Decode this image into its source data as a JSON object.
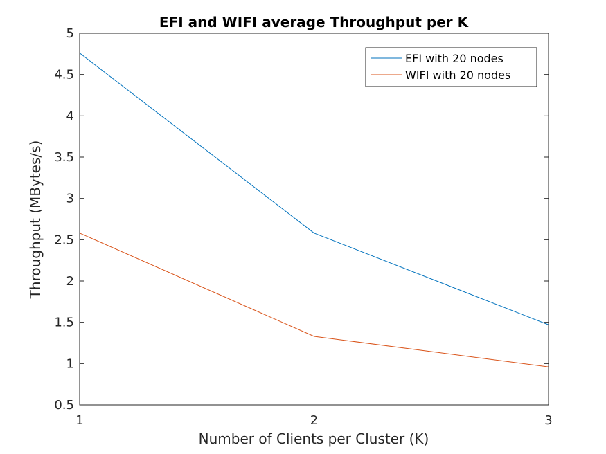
{
  "chart_data": {
    "type": "line",
    "title": "EFI and WIFI average Throughput per K",
    "xlabel": "Number of Clients per Cluster (K)",
    "ylabel": "Throughput (MBytes/s)",
    "x": [
      1,
      2,
      3
    ],
    "xlim": [
      1,
      3
    ],
    "ylim": [
      0.5,
      5
    ],
    "xticks": [
      "1",
      "2",
      "3"
    ],
    "yticks": [
      "0.5",
      "1",
      "1.5",
      "2",
      "2.5",
      "3",
      "3.5",
      "4",
      "4.5",
      "5"
    ],
    "grid": false,
    "legend_position": "top-right",
    "series": [
      {
        "name": "EFI with 20 nodes",
        "values": [
          4.76,
          2.58,
          1.47
        ],
        "color": "#0072BD"
      },
      {
        "name": "WIFI with 20 nodes",
        "values": [
          2.58,
          1.33,
          0.96
        ],
        "color": "#D95319"
      }
    ]
  }
}
